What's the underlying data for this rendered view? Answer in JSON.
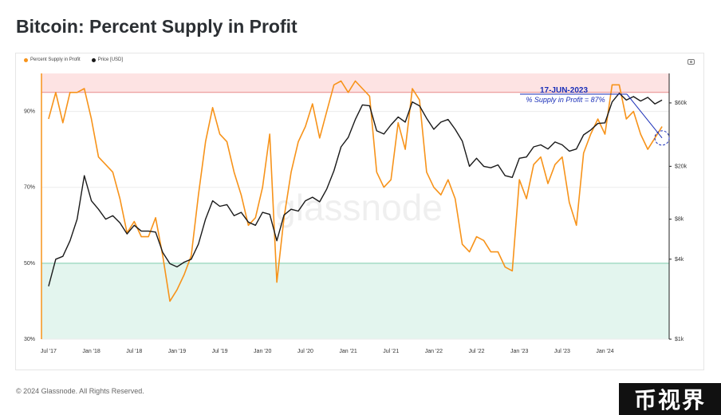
{
  "header": {
    "title": "Bitcoin: Percent Supply in Profit"
  },
  "legend": {
    "items": [
      {
        "label": "Percent Supply in Profit",
        "color": "#f7931a"
      },
      {
        "label": "Price [USD]",
        "color": "#1a1a1a"
      }
    ]
  },
  "footer": {
    "copyright": "© 2024 Glassnode. All Rights Reserved."
  },
  "badge": {
    "text": "币视界"
  },
  "watermark": {
    "text": "glassnode"
  },
  "icons": {
    "export": "camera-icon"
  },
  "chart_data": {
    "type": "line",
    "title": "Bitcoin: Percent Supply in Profit",
    "x_ticks": [
      "Jul '17",
      "Jan '18",
      "Jul '18",
      "Jan '19",
      "Jul '19",
      "Jan '20",
      "Jul '20",
      "Jan '21",
      "Jul '21",
      "Jan '22",
      "Jul '22",
      "Jan '23",
      "Jul '23",
      "Jan '24"
    ],
    "y_left": {
      "ticks": [
        "90%",
        "70%",
        "50%",
        "30%"
      ],
      "range": [
        30,
        100
      ]
    },
    "y_right": {
      "ticks": [
        "$60k",
        "$20k",
        "$8k",
        "$4k",
        "$1k"
      ],
      "scale": "log",
      "range": [
        1000,
        100000
      ]
    },
    "bands": [
      {
        "name": "high",
        "from": 95,
        "to": 100,
        "color": "#fde3e3"
      },
      {
        "name": "low",
        "from": 30,
        "to": 50,
        "color": "#e3f5ee"
      }
    ],
    "threshold_lines": [
      {
        "value": 95,
        "color": "#e88a8a"
      },
      {
        "value": 50,
        "color": "#7fcfaf"
      }
    ],
    "series": [
      {
        "name": "Percent Supply in Profit",
        "color": "#f7931a",
        "axis": "left",
        "points": [
          [
            "2017-07",
            88
          ],
          [
            "2017-08",
            95
          ],
          [
            "2017-09",
            87
          ],
          [
            "2017-10",
            95
          ],
          [
            "2017-11",
            95
          ],
          [
            "2017-12",
            96
          ],
          [
            "2018-01",
            88
          ],
          [
            "2018-02",
            78
          ],
          [
            "2018-03",
            76
          ],
          [
            "2018-04",
            74
          ],
          [
            "2018-05",
            67
          ],
          [
            "2018-06",
            58
          ],
          [
            "2018-07",
            61
          ],
          [
            "2018-08",
            57
          ],
          [
            "2018-09",
            57
          ],
          [
            "2018-10",
            62
          ],
          [
            "2018-11",
            52
          ],
          [
            "2018-12",
            40
          ],
          [
            "2019-01",
            43
          ],
          [
            "2019-02",
            47
          ],
          [
            "2019-03",
            52
          ],
          [
            "2019-04",
            68
          ],
          [
            "2019-05",
            82
          ],
          [
            "2019-06",
            91
          ],
          [
            "2019-07",
            84
          ],
          [
            "2019-08",
            82
          ],
          [
            "2019-09",
            74
          ],
          [
            "2019-10",
            68
          ],
          [
            "2019-11",
            60
          ],
          [
            "2019-12",
            62
          ],
          [
            "2020-01",
            70
          ],
          [
            "2020-02",
            84
          ],
          [
            "2020-03",
            45
          ],
          [
            "2020-04",
            62
          ],
          [
            "2020-05",
            74
          ],
          [
            "2020-06",
            82
          ],
          [
            "2020-07",
            86
          ],
          [
            "2020-08",
            92
          ],
          [
            "2020-09",
            83
          ],
          [
            "2020-10",
            90
          ],
          [
            "2020-11",
            97
          ],
          [
            "2020-12",
            98
          ],
          [
            "2021-01",
            95
          ],
          [
            "2021-02",
            98
          ],
          [
            "2021-03",
            96
          ],
          [
            "2021-04",
            94
          ],
          [
            "2021-05",
            74
          ],
          [
            "2021-06",
            70
          ],
          [
            "2021-07",
            72
          ],
          [
            "2021-08",
            87
          ],
          [
            "2021-09",
            80
          ],
          [
            "2021-10",
            96
          ],
          [
            "2021-11",
            93
          ],
          [
            "2021-12",
            74
          ],
          [
            "2022-01",
            70
          ],
          [
            "2022-02",
            68
          ],
          [
            "2022-03",
            72
          ],
          [
            "2022-04",
            67
          ],
          [
            "2022-05",
            55
          ],
          [
            "2022-06",
            53
          ],
          [
            "2022-07",
            57
          ],
          [
            "2022-08",
            56
          ],
          [
            "2022-09",
            53
          ],
          [
            "2022-10",
            53
          ],
          [
            "2022-11",
            49
          ],
          [
            "2022-12",
            48
          ],
          [
            "2023-01",
            72
          ],
          [
            "2023-02",
            67
          ],
          [
            "2023-03",
            76
          ],
          [
            "2023-04",
            78
          ],
          [
            "2023-05",
            71
          ],
          [
            "2023-06",
            76
          ],
          [
            "2023-07",
            78
          ],
          [
            "2023-08",
            66
          ],
          [
            "2023-09",
            60
          ],
          [
            "2023-10",
            79
          ],
          [
            "2023-11",
            84
          ],
          [
            "2023-12",
            88
          ],
          [
            "2024-01",
            84
          ],
          [
            "2024-02",
            97
          ],
          [
            "2024-03",
            97
          ],
          [
            "2024-04",
            88
          ],
          [
            "2024-05",
            90
          ],
          [
            "2024-06",
            84
          ],
          [
            "2024-07",
            80
          ],
          [
            "2024-08",
            83
          ],
          [
            "2024-09",
            86
          ]
        ]
      },
      {
        "name": "Price [USD]",
        "color": "#1a1a1a",
        "axis": "right",
        "points": [
          [
            "2017-07",
            2500
          ],
          [
            "2017-08",
            4000
          ],
          [
            "2017-09",
            4200
          ],
          [
            "2017-10",
            5500
          ],
          [
            "2017-11",
            8000
          ],
          [
            "2017-12",
            17000
          ],
          [
            "2018-01",
            11000
          ],
          [
            "2018-02",
            9500
          ],
          [
            "2018-03",
            8000
          ],
          [
            "2018-04",
            8500
          ],
          [
            "2018-05",
            7500
          ],
          [
            "2018-06",
            6200
          ],
          [
            "2018-07",
            7200
          ],
          [
            "2018-08",
            6500
          ],
          [
            "2018-09",
            6500
          ],
          [
            "2018-10",
            6400
          ],
          [
            "2018-11",
            4500
          ],
          [
            "2018-12",
            3700
          ],
          [
            "2019-01",
            3500
          ],
          [
            "2019-02",
            3800
          ],
          [
            "2019-03",
            4000
          ],
          [
            "2019-04",
            5200
          ],
          [
            "2019-05",
            8000
          ],
          [
            "2019-06",
            11000
          ],
          [
            "2019-07",
            10000
          ],
          [
            "2019-08",
            10300
          ],
          [
            "2019-09",
            8500
          ],
          [
            "2019-10",
            9000
          ],
          [
            "2019-11",
            7600
          ],
          [
            "2019-12",
            7200
          ],
          [
            "2020-01",
            9000
          ],
          [
            "2020-02",
            8700
          ],
          [
            "2020-03",
            5500
          ],
          [
            "2020-04",
            8600
          ],
          [
            "2020-05",
            9500
          ],
          [
            "2020-06",
            9200
          ],
          [
            "2020-07",
            11000
          ],
          [
            "2020-08",
            11700
          ],
          [
            "2020-09",
            10800
          ],
          [
            "2020-10",
            13500
          ],
          [
            "2020-11",
            18500
          ],
          [
            "2020-12",
            28000
          ],
          [
            "2021-01",
            33000
          ],
          [
            "2021-02",
            45000
          ],
          [
            "2021-03",
            58000
          ],
          [
            "2021-04",
            57000
          ],
          [
            "2021-05",
            37000
          ],
          [
            "2021-06",
            35000
          ],
          [
            "2021-07",
            41000
          ],
          [
            "2021-08",
            47000
          ],
          [
            "2021-09",
            43000
          ],
          [
            "2021-10",
            61000
          ],
          [
            "2021-11",
            57000
          ],
          [
            "2021-12",
            46000
          ],
          [
            "2022-01",
            38000
          ],
          [
            "2022-02",
            43000
          ],
          [
            "2022-03",
            45000
          ],
          [
            "2022-04",
            38000
          ],
          [
            "2022-05",
            31000
          ],
          [
            "2022-06",
            20000
          ],
          [
            "2022-07",
            23000
          ],
          [
            "2022-08",
            20000
          ],
          [
            "2022-09",
            19500
          ],
          [
            "2022-10",
            20500
          ],
          [
            "2022-11",
            17000
          ],
          [
            "2022-12",
            16500
          ],
          [
            "2023-01",
            23000
          ],
          [
            "2023-02",
            23500
          ],
          [
            "2023-03",
            28000
          ],
          [
            "2023-04",
            29000
          ],
          [
            "2023-05",
            27000
          ],
          [
            "2023-06",
            30500
          ],
          [
            "2023-07",
            29000
          ],
          [
            "2023-08",
            26000
          ],
          [
            "2023-09",
            27000
          ],
          [
            "2023-10",
            34500
          ],
          [
            "2023-11",
            37500
          ],
          [
            "2023-12",
            42000
          ],
          [
            "2024-01",
            42500
          ],
          [
            "2024-02",
            61000
          ],
          [
            "2024-03",
            71000
          ],
          [
            "2024-04",
            63000
          ],
          [
            "2024-05",
            67000
          ],
          [
            "2024-06",
            62000
          ],
          [
            "2024-07",
            66000
          ],
          [
            "2024-08",
            59000
          ],
          [
            "2024-09",
            63000
          ]
        ]
      }
    ],
    "annotation": {
      "date": "17-JUN-2023",
      "text": "% Supply in Profit = 87%"
    }
  }
}
